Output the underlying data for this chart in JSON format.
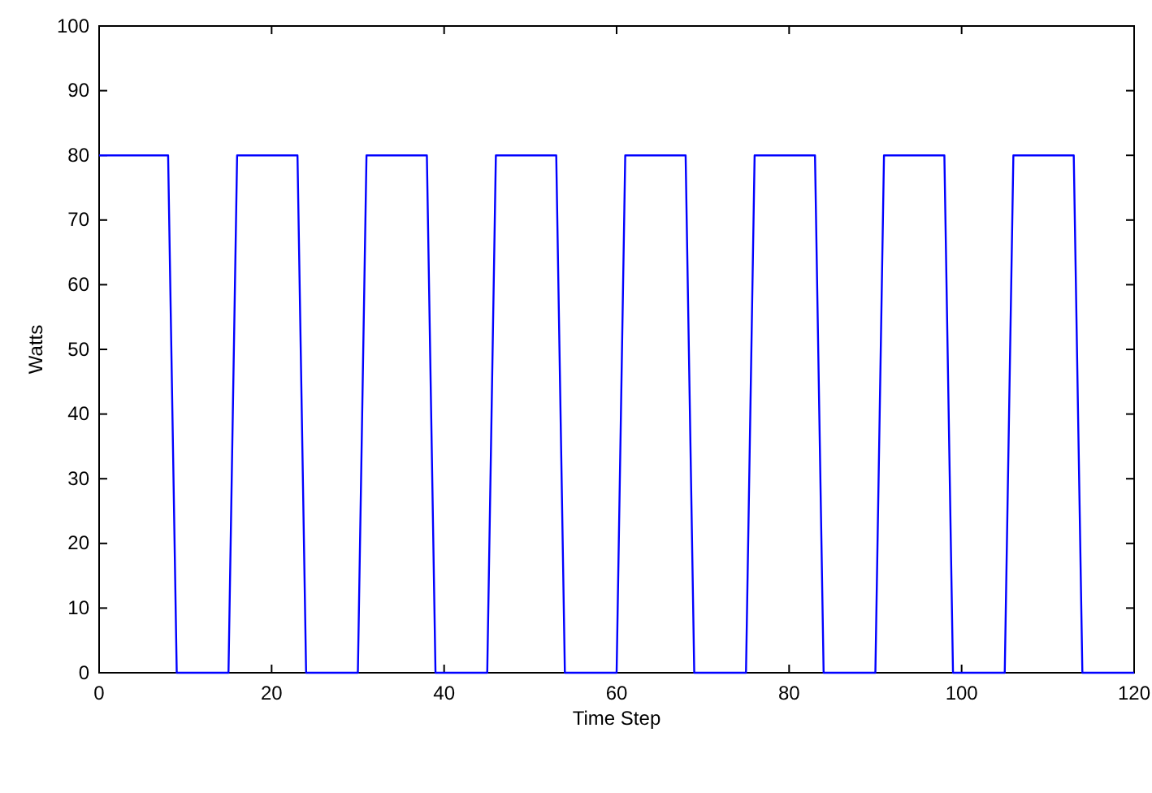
{
  "chart_data": {
    "type": "line",
    "xlabel": "Time Step",
    "ylabel": "Watts",
    "x": [
      0,
      8,
      9,
      15,
      16,
      23,
      24,
      30,
      31,
      38,
      39,
      45,
      46,
      53,
      54,
      60,
      61,
      68,
      69,
      75,
      76,
      83,
      84,
      90,
      91,
      98,
      99,
      105,
      106,
      113,
      114,
      120
    ],
    "series": [
      {
        "color": "#0000ff",
        "values": [
          80,
          80,
          0,
          0,
          80,
          80,
          0,
          0,
          80,
          80,
          0,
          0,
          80,
          80,
          0,
          0,
          80,
          80,
          0,
          0,
          80,
          80,
          0,
          0,
          80,
          80,
          0,
          0,
          80,
          80,
          0,
          0
        ]
      }
    ],
    "xlim": [
      0,
      120
    ],
    "xticks": [
      0,
      20,
      40,
      60,
      80,
      100,
      120
    ],
    "ylim": [
      0,
      100
    ],
    "yticks": [
      0,
      10,
      20,
      30,
      40,
      50,
      60,
      70,
      80,
      90,
      100
    ],
    "grid": false,
    "marker": "none",
    "line_style": "solid"
  }
}
